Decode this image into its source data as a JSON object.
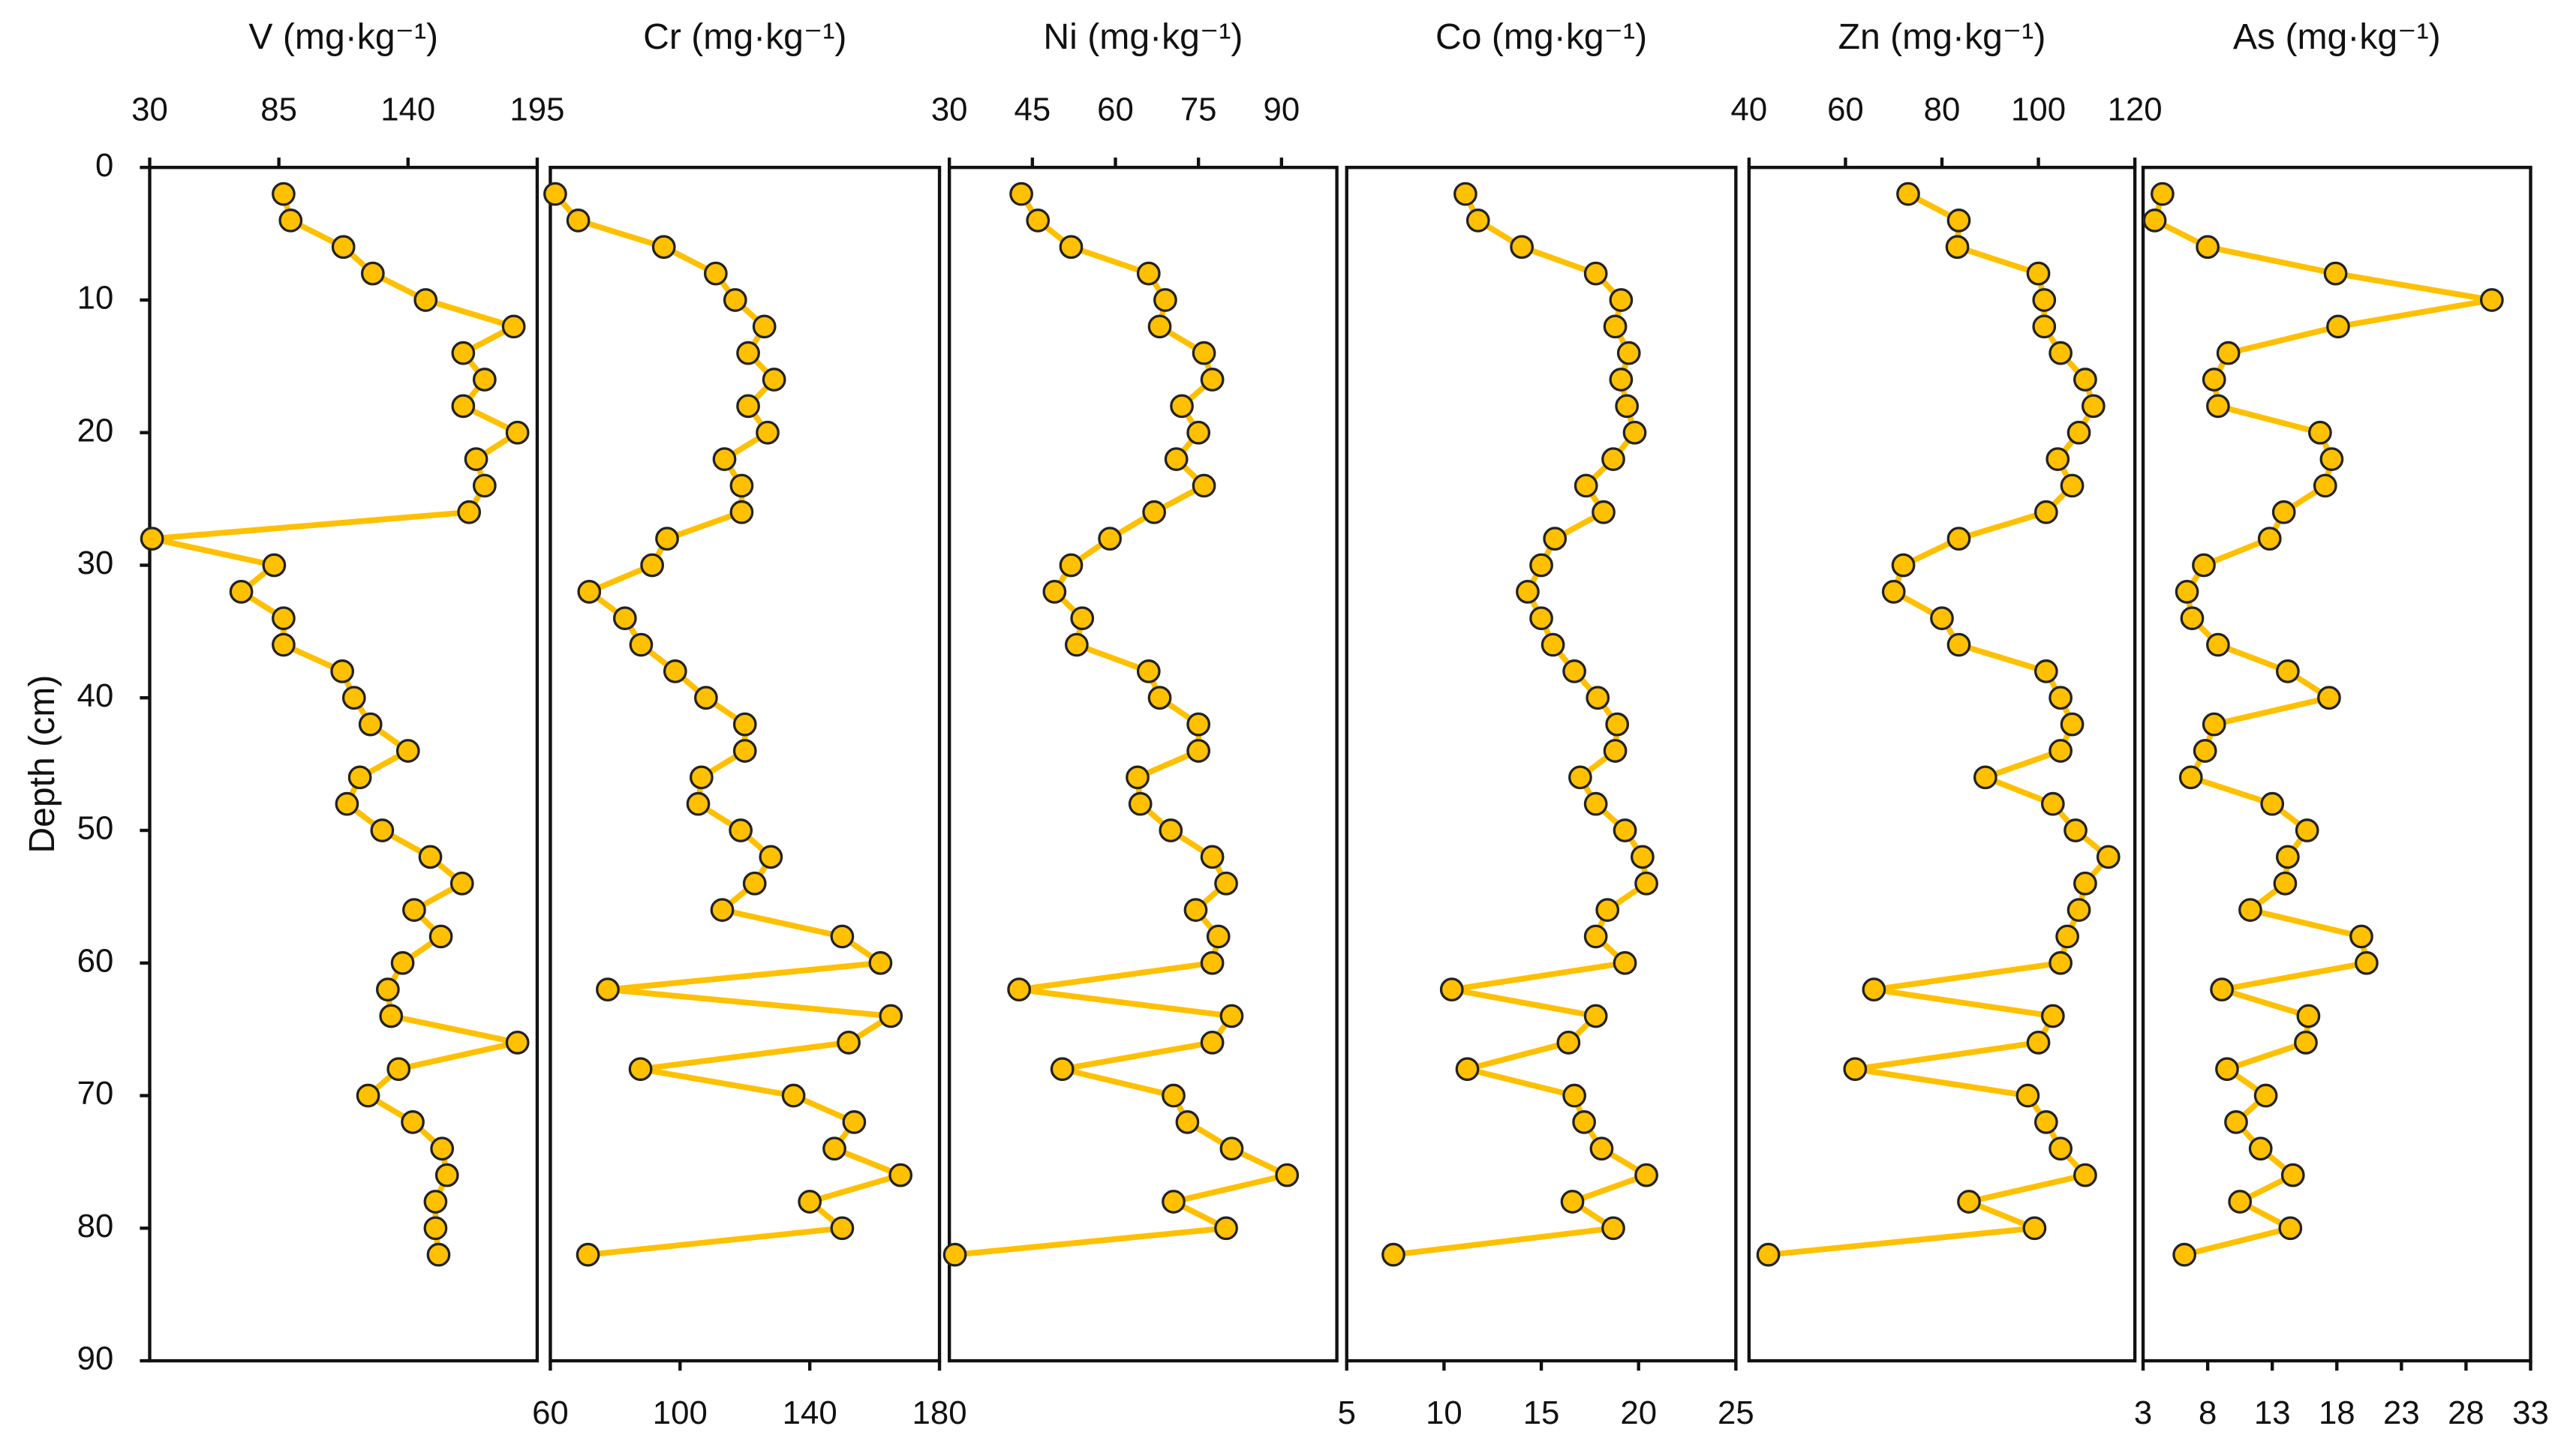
{
  "chart_data": [
    {
      "type": "line",
      "title": "V (mg·kg⁻¹)",
      "ylabel": "Depth (cm)",
      "xaxis": "top",
      "xlim": [
        30,
        195
      ],
      "xticks": [
        30,
        85,
        140,
        195
      ],
      "ylim": [
        0,
        90
      ],
      "yticks": [
        0,
        10,
        20,
        30,
        40,
        50,
        60,
        70,
        80,
        90
      ],
      "color": "#ffc000",
      "marker_edge": "#222222",
      "y": [
        2,
        4,
        6,
        8,
        10,
        12,
        14,
        16,
        18,
        20,
        22,
        24,
        26,
        28,
        30,
        32,
        34,
        36,
        38,
        40,
        42,
        44,
        46,
        48,
        50,
        52,
        54,
        56,
        58,
        60,
        62,
        64,
        66,
        68,
        70,
        72,
        74,
        76,
        78,
        80,
        82
      ],
      "x": [
        87,
        90,
        112.5,
        125,
        147.5,
        185,
        163.5,
        172.6,
        163.5,
        186.6,
        169,
        172.6,
        166,
        31,
        83,
        69,
        87,
        87,
        112,
        117,
        124,
        140,
        119.5,
        114,
        129,
        149.5,
        163,
        142.6,
        154,
        137.7,
        131.4,
        132.8,
        186.6,
        136,
        123,
        142,
        154.5,
        156.6,
        151.7,
        151.7,
        153
      ]
    },
    {
      "type": "line",
      "title": "Cr (mg·kg⁻¹)",
      "xaxis": "bottom",
      "xlim": [
        60,
        180
      ],
      "xticks": [
        60,
        100,
        140,
        180
      ],
      "ylim": [
        0,
        90
      ],
      "color": "#ffc000",
      "marker_edge": "#222222",
      "y": [
        2,
        4,
        6,
        8,
        10,
        12,
        14,
        16,
        18,
        20,
        22,
        24,
        26,
        28,
        30,
        32,
        34,
        36,
        38,
        40,
        42,
        44,
        46,
        48,
        50,
        52,
        54,
        56,
        58,
        60,
        62,
        64,
        66,
        68,
        70,
        72,
        74,
        76,
        78,
        80,
        82
      ],
      "x": [
        61.5,
        68.6,
        95,
        111,
        117,
        126,
        121,
        129,
        121,
        127,
        113.7,
        119,
        119,
        96,
        91.4,
        72,
        83,
        88,
        98.5,
        108,
        120,
        120,
        106.6,
        105.6,
        118.7,
        128,
        123,
        113,
        150,
        161.8,
        77.7,
        165,
        152,
        87.8,
        135,
        153.7,
        147.6,
        168,
        140,
        150,
        71.6
      ]
    },
    {
      "type": "line",
      "title": "Ni (mg·kg⁻¹)",
      "xaxis": "top",
      "xlim": [
        30,
        100
      ],
      "xticks": [
        30,
        45,
        60,
        75,
        90
      ],
      "ylim": [
        0,
        90
      ],
      "color": "#ffc000",
      "marker_edge": "#222222",
      "y": [
        2,
        4,
        6,
        8,
        10,
        12,
        14,
        16,
        18,
        20,
        22,
        24,
        26,
        28,
        30,
        32,
        34,
        36,
        38,
        40,
        42,
        44,
        46,
        48,
        50,
        52,
        54,
        56,
        58,
        60,
        62,
        64,
        66,
        68,
        70,
        72,
        74,
        76,
        78,
        80,
        82
      ],
      "x": [
        43,
        46,
        52,
        66,
        69,
        68,
        76,
        77.5,
        72,
        75,
        71,
        76,
        67,
        59,
        52,
        49,
        54,
        53,
        66,
        68,
        75,
        75,
        64,
        64.5,
        70,
        77.5,
        80,
        74.5,
        78.6,
        77.5,
        42.6,
        81,
        77.5,
        50.4,
        70.5,
        73,
        81,
        91,
        70.5,
        80,
        31
      ]
    },
    {
      "type": "line",
      "title": "Co (mg·kg⁻¹)",
      "xaxis": "bottom",
      "xlim": [
        5,
        25
      ],
      "xticks": [
        5,
        10,
        15,
        20,
        25
      ],
      "ylim": [
        0,
        90
      ],
      "color": "#ffc000",
      "marker_edge": "#222222",
      "y": [
        2,
        4,
        6,
        8,
        10,
        12,
        14,
        16,
        18,
        20,
        22,
        24,
        26,
        28,
        30,
        32,
        34,
        36,
        38,
        40,
        42,
        44,
        46,
        48,
        50,
        52,
        54,
        56,
        58,
        60,
        62,
        64,
        66,
        68,
        70,
        72,
        74,
        76,
        78,
        80,
        82
      ],
      "x": [
        11.1,
        11.75,
        14,
        17.8,
        19.1,
        18.8,
        19.5,
        19.1,
        19.4,
        19.8,
        18.7,
        17.3,
        18.2,
        15.7,
        15,
        14.3,
        15,
        15.6,
        16.7,
        17.9,
        18.9,
        18.8,
        17,
        17.8,
        19.3,
        20.2,
        20.4,
        18.4,
        17.8,
        19.3,
        10.4,
        17.8,
        16.4,
        11.2,
        16.7,
        17.2,
        18.1,
        20.4,
        16.6,
        18.7,
        7.4
      ]
    },
    {
      "type": "line",
      "title": "Zn (mg·kg⁻¹)",
      "xaxis": "top",
      "xlim": [
        40,
        120
      ],
      "xticks": [
        40,
        60,
        80,
        100,
        120
      ],
      "ylim": [
        0,
        90
      ],
      "color": "#ffc000",
      "marker_edge": "#222222",
      "y": [
        2,
        4,
        6,
        8,
        10,
        12,
        14,
        16,
        18,
        20,
        22,
        24,
        26,
        28,
        30,
        32,
        34,
        36,
        38,
        40,
        42,
        44,
        46,
        48,
        50,
        52,
        54,
        56,
        58,
        60,
        62,
        64,
        66,
        68,
        70,
        72,
        74,
        76,
        78,
        80,
        82
      ],
      "x": [
        73,
        83.5,
        83.2,
        100,
        101.2,
        101.2,
        104.6,
        109.7,
        111.4,
        108.4,
        104,
        107,
        101.6,
        83.5,
        72,
        70,
        80,
        83.5,
        101.6,
        104.6,
        107,
        104.6,
        89,
        103,
        107.7,
        114.5,
        109.7,
        108.4,
        106,
        104.6,
        65.9,
        103,
        100,
        62,
        97.8,
        101.6,
        104.6,
        109.7,
        85.6,
        99.2,
        44
      ]
    },
    {
      "type": "line",
      "title": "As (mg·kg⁻¹)",
      "xaxis": "bottom",
      "xlim": [
        3,
        33
      ],
      "xticks": [
        3,
        8,
        13,
        18,
        23,
        28,
        33
      ],
      "ylim": [
        0,
        90
      ],
      "color": "#ffc000",
      "marker_edge": "#222222",
      "y": [
        2,
        4,
        6,
        8,
        10,
        12,
        14,
        16,
        18,
        20,
        22,
        24,
        26,
        28,
        30,
        32,
        34,
        36,
        38,
        40,
        42,
        44,
        46,
        48,
        50,
        52,
        54,
        56,
        58,
        60,
        62,
        64,
        66,
        68,
        70,
        72,
        74,
        76,
        78,
        80,
        82
      ],
      "x": [
        4.5,
        3.9,
        8,
        17.9,
        30,
        18.1,
        9.6,
        8.5,
        8.8,
        16.7,
        17.6,
        17.1,
        13.9,
        12.8,
        7.7,
        6.4,
        6.8,
        8.8,
        14.2,
        17.4,
        8.5,
        7.8,
        6.7,
        13,
        15.7,
        14.2,
        14,
        11.3,
        19.9,
        20.3,
        9.1,
        15.8,
        15.6,
        9.5,
        12.5,
        10.2,
        12.1,
        14.6,
        10.5,
        14.4,
        6.2
      ]
    }
  ]
}
